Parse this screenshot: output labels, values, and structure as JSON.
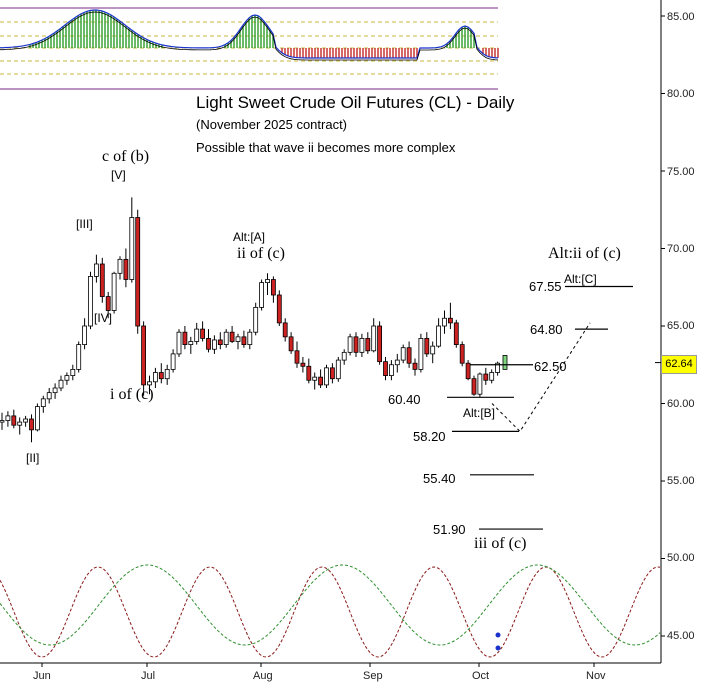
{
  "title": "Light Sweet Crude Oil Futures (CL) - Daily",
  "subtitle": "(November 2025 contract)",
  "note": "Possible that wave ii becomes more complex",
  "current_price": "62.64",
  "colors": {
    "up": "#ffffff",
    "down": "#cc2222",
    "green": "#2a9d2a",
    "red": "#c62828",
    "purple": "#7a2a8a",
    "dash_yellow": "#b8a400",
    "cycle_red": "#8b1a1a",
    "cycle_green": "#2f8f2f",
    "projection": "#000000"
  },
  "chart_data": {
    "type": "candlestick",
    "title": "Light Sweet Crude Oil Futures (CL) - Daily",
    "x_ticks": [
      "Jun",
      "Jul",
      "Aug",
      "Sep",
      "Oct",
      "Nov"
    ],
    "y_ticks": [
      "85.00",
      "80.00",
      "75.00",
      "70.00",
      "65.00",
      "60.00",
      "55.00",
      "50.00",
      "45.00"
    ],
    "ylim": [
      43.5,
      86
    ],
    "grid": false,
    "candles": [
      [
        58.8,
        59.4,
        58.3,
        58.9
      ],
      [
        58.9,
        59.5,
        58.5,
        59.2
      ],
      [
        59.2,
        59.6,
        58.4,
        58.6
      ],
      [
        58.6,
        59.1,
        58.0,
        58.8
      ],
      [
        58.8,
        59.2,
        58.5,
        59.0
      ],
      [
        59.0,
        59.3,
        57.5,
        58.3
      ],
      [
        58.3,
        60.0,
        58.2,
        59.8
      ],
      [
        59.8,
        60.5,
        59.4,
        60.3
      ],
      [
        60.3,
        61.0,
        60.0,
        60.7
      ],
      [
        60.7,
        61.3,
        60.3,
        61.0
      ],
      [
        61.0,
        61.8,
        60.8,
        61.5
      ],
      [
        61.5,
        62.0,
        61.2,
        61.8
      ],
      [
        61.8,
        62.5,
        61.5,
        62.2
      ],
      [
        62.2,
        64.0,
        62.0,
        63.8
      ],
      [
        63.8,
        65.5,
        63.5,
        65.0
      ],
      [
        65.0,
        68.5,
        64.8,
        68.2
      ],
      [
        68.2,
        69.6,
        67.8,
        69.0
      ],
      [
        69.0,
        69.4,
        66.5,
        66.9
      ],
      [
        66.9,
        67.2,
        65.5,
        66.0
      ],
      [
        66.0,
        68.5,
        65.8,
        68.4
      ],
      [
        68.4,
        69.5,
        68.0,
        69.3
      ],
      [
        69.3,
        70.0,
        67.5,
        68.0
      ],
      [
        68.0,
        73.3,
        67.8,
        72.0
      ],
      [
        72.0,
        72.5,
        64.5,
        65.0
      ],
      [
        65.0,
        65.3,
        60.5,
        61.2
      ],
      [
        61.2,
        61.8,
        60.6,
        61.4
      ],
      [
        61.4,
        62.3,
        61.0,
        62.0
      ],
      [
        62.0,
        62.6,
        61.3,
        61.6
      ],
      [
        61.6,
        62.5,
        61.2,
        62.2
      ],
      [
        62.2,
        63.5,
        62.0,
        63.2
      ],
      [
        63.2,
        64.8,
        63.0,
        64.6
      ],
      [
        64.6,
        65.0,
        63.5,
        63.8
      ],
      [
        63.8,
        64.3,
        63.2,
        64.0
      ],
      [
        64.0,
        65.2,
        63.8,
        64.8
      ],
      [
        64.8,
        65.3,
        64.0,
        64.2
      ],
      [
        64.2,
        64.8,
        63.3,
        63.5
      ],
      [
        63.5,
        64.4,
        63.2,
        64.1
      ],
      [
        64.1,
        64.6,
        63.5,
        63.8
      ],
      [
        63.8,
        64.8,
        63.6,
        64.6
      ],
      [
        64.6,
        65.0,
        63.9,
        64.0
      ],
      [
        64.0,
        64.5,
        63.5,
        64.3
      ],
      [
        64.3,
        64.7,
        63.6,
        63.8
      ],
      [
        63.8,
        64.8,
        63.5,
        64.6
      ],
      [
        64.6,
        66.5,
        64.4,
        66.2
      ],
      [
        66.2,
        68.0,
        66.0,
        67.8
      ],
      [
        67.8,
        68.4,
        67.0,
        68.0
      ],
      [
        68.0,
        68.2,
        66.5,
        67.0
      ],
      [
        67.0,
        67.3,
        65.0,
        65.2
      ],
      [
        65.2,
        65.5,
        64.0,
        64.3
      ],
      [
        64.3,
        64.6,
        63.2,
        63.4
      ],
      [
        63.4,
        64.0,
        62.3,
        62.6
      ],
      [
        62.6,
        63.0,
        62.0,
        62.4
      ],
      [
        62.4,
        62.9,
        61.3,
        61.5
      ],
      [
        61.5,
        62.0,
        60.9,
        61.7
      ],
      [
        61.7,
        62.2,
        61.0,
        61.2
      ],
      [
        61.2,
        62.5,
        61.0,
        62.3
      ],
      [
        62.3,
        62.6,
        61.3,
        61.6
      ],
      [
        61.6,
        63.0,
        61.4,
        62.8
      ],
      [
        62.8,
        63.5,
        62.5,
        63.3
      ],
      [
        63.3,
        64.5,
        63.1,
        64.3
      ],
      [
        64.3,
        64.6,
        63.0,
        63.3
      ],
      [
        63.3,
        64.5,
        63.0,
        64.2
      ],
      [
        64.2,
        64.6,
        63.2,
        63.4
      ],
      [
        63.4,
        65.5,
        63.3,
        65.0
      ],
      [
        65.0,
        65.3,
        62.5,
        62.7
      ],
      [
        62.7,
        63.0,
        61.5,
        61.8
      ],
      [
        61.8,
        62.8,
        61.5,
        62.5
      ],
      [
        62.5,
        63.2,
        62.0,
        62.8
      ],
      [
        62.8,
        63.8,
        62.6,
        63.6
      ],
      [
        63.6,
        64.0,
        62.3,
        62.6
      ],
      [
        62.6,
        62.9,
        61.8,
        62.2
      ],
      [
        62.2,
        64.5,
        62.0,
        64.2
      ],
      [
        64.2,
        64.6,
        63.0,
        63.2
      ],
      [
        63.2,
        64.0,
        62.6,
        63.7
      ],
      [
        63.7,
        65.5,
        63.6,
        65.0
      ],
      [
        65.0,
        66.0,
        64.5,
        65.5
      ],
      [
        65.5,
        66.5,
        64.8,
        65.2
      ],
      [
        65.2,
        65.4,
        63.6,
        63.8
      ],
      [
        63.8,
        64.0,
        62.4,
        62.6
      ],
      [
        62.6,
        62.8,
        61.5,
        61.6
      ],
      [
        61.6,
        61.8,
        60.5,
        60.6
      ],
      [
        60.6,
        62.0,
        60.4,
        61.9
      ],
      [
        61.9,
        62.3,
        61.2,
        61.5
      ],
      [
        61.5,
        62.2,
        61.3,
        62.0
      ],
      [
        62.0,
        62.7,
        61.8,
        62.6
      ]
    ],
    "annotations": [
      {
        "text": "c of (b)"
      },
      {
        "text": "[V]"
      },
      {
        "text": "[III]"
      },
      {
        "text": "[IV]"
      },
      {
        "text": "[II]"
      },
      {
        "text": "i of (c)"
      },
      {
        "text": "Alt:[A]"
      },
      {
        "text": "ii of (c)"
      },
      {
        "text": "Alt:ii of (c)"
      },
      {
        "text": "Alt:[C]"
      },
      {
        "text": "Alt:[B]"
      },
      {
        "text": "iii of (c)"
      }
    ],
    "levels": [
      {
        "label": "67.55",
        "value": 67.55
      },
      {
        "label": "64.80",
        "value": 64.8
      },
      {
        "label": "62.50",
        "value": 62.5
      },
      {
        "label": "60.40",
        "value": 60.4
      },
      {
        "label": "58.20",
        "value": 58.2
      },
      {
        "label": "55.40",
        "value": 55.4
      },
      {
        "label": "51.90",
        "value": 51.9
      }
    ]
  },
  "labels": {
    "c_of_b": "c of (b)",
    "v": "[V]",
    "iii": "[III]",
    "iv": "[IV]",
    "ii": "[II]",
    "i_of_c": "i of (c)",
    "alt_a": "Alt:[A]",
    "ii_of_c": "ii of (c)",
    "alt_ii": "Alt:ii of (c)",
    "alt_c": "Alt:[C]",
    "alt_b": "Alt:[B]",
    "iii_of_c": "iii of (c)",
    "l6755": "67.55",
    "l6480": "64.80",
    "l6250": "62.50",
    "l6040": "60.40",
    "l5820": "58.20",
    "l5540": "55.40",
    "l5190": "51.90"
  },
  "axis": {
    "x": [
      "Jun",
      "Jul",
      "Aug",
      "Sep",
      "Oct",
      "Nov"
    ],
    "y": [
      "85.00",
      "80.00",
      "75.00",
      "70.00",
      "65.00",
      "60.00",
      "55.00",
      "50.00",
      "45.00"
    ]
  }
}
